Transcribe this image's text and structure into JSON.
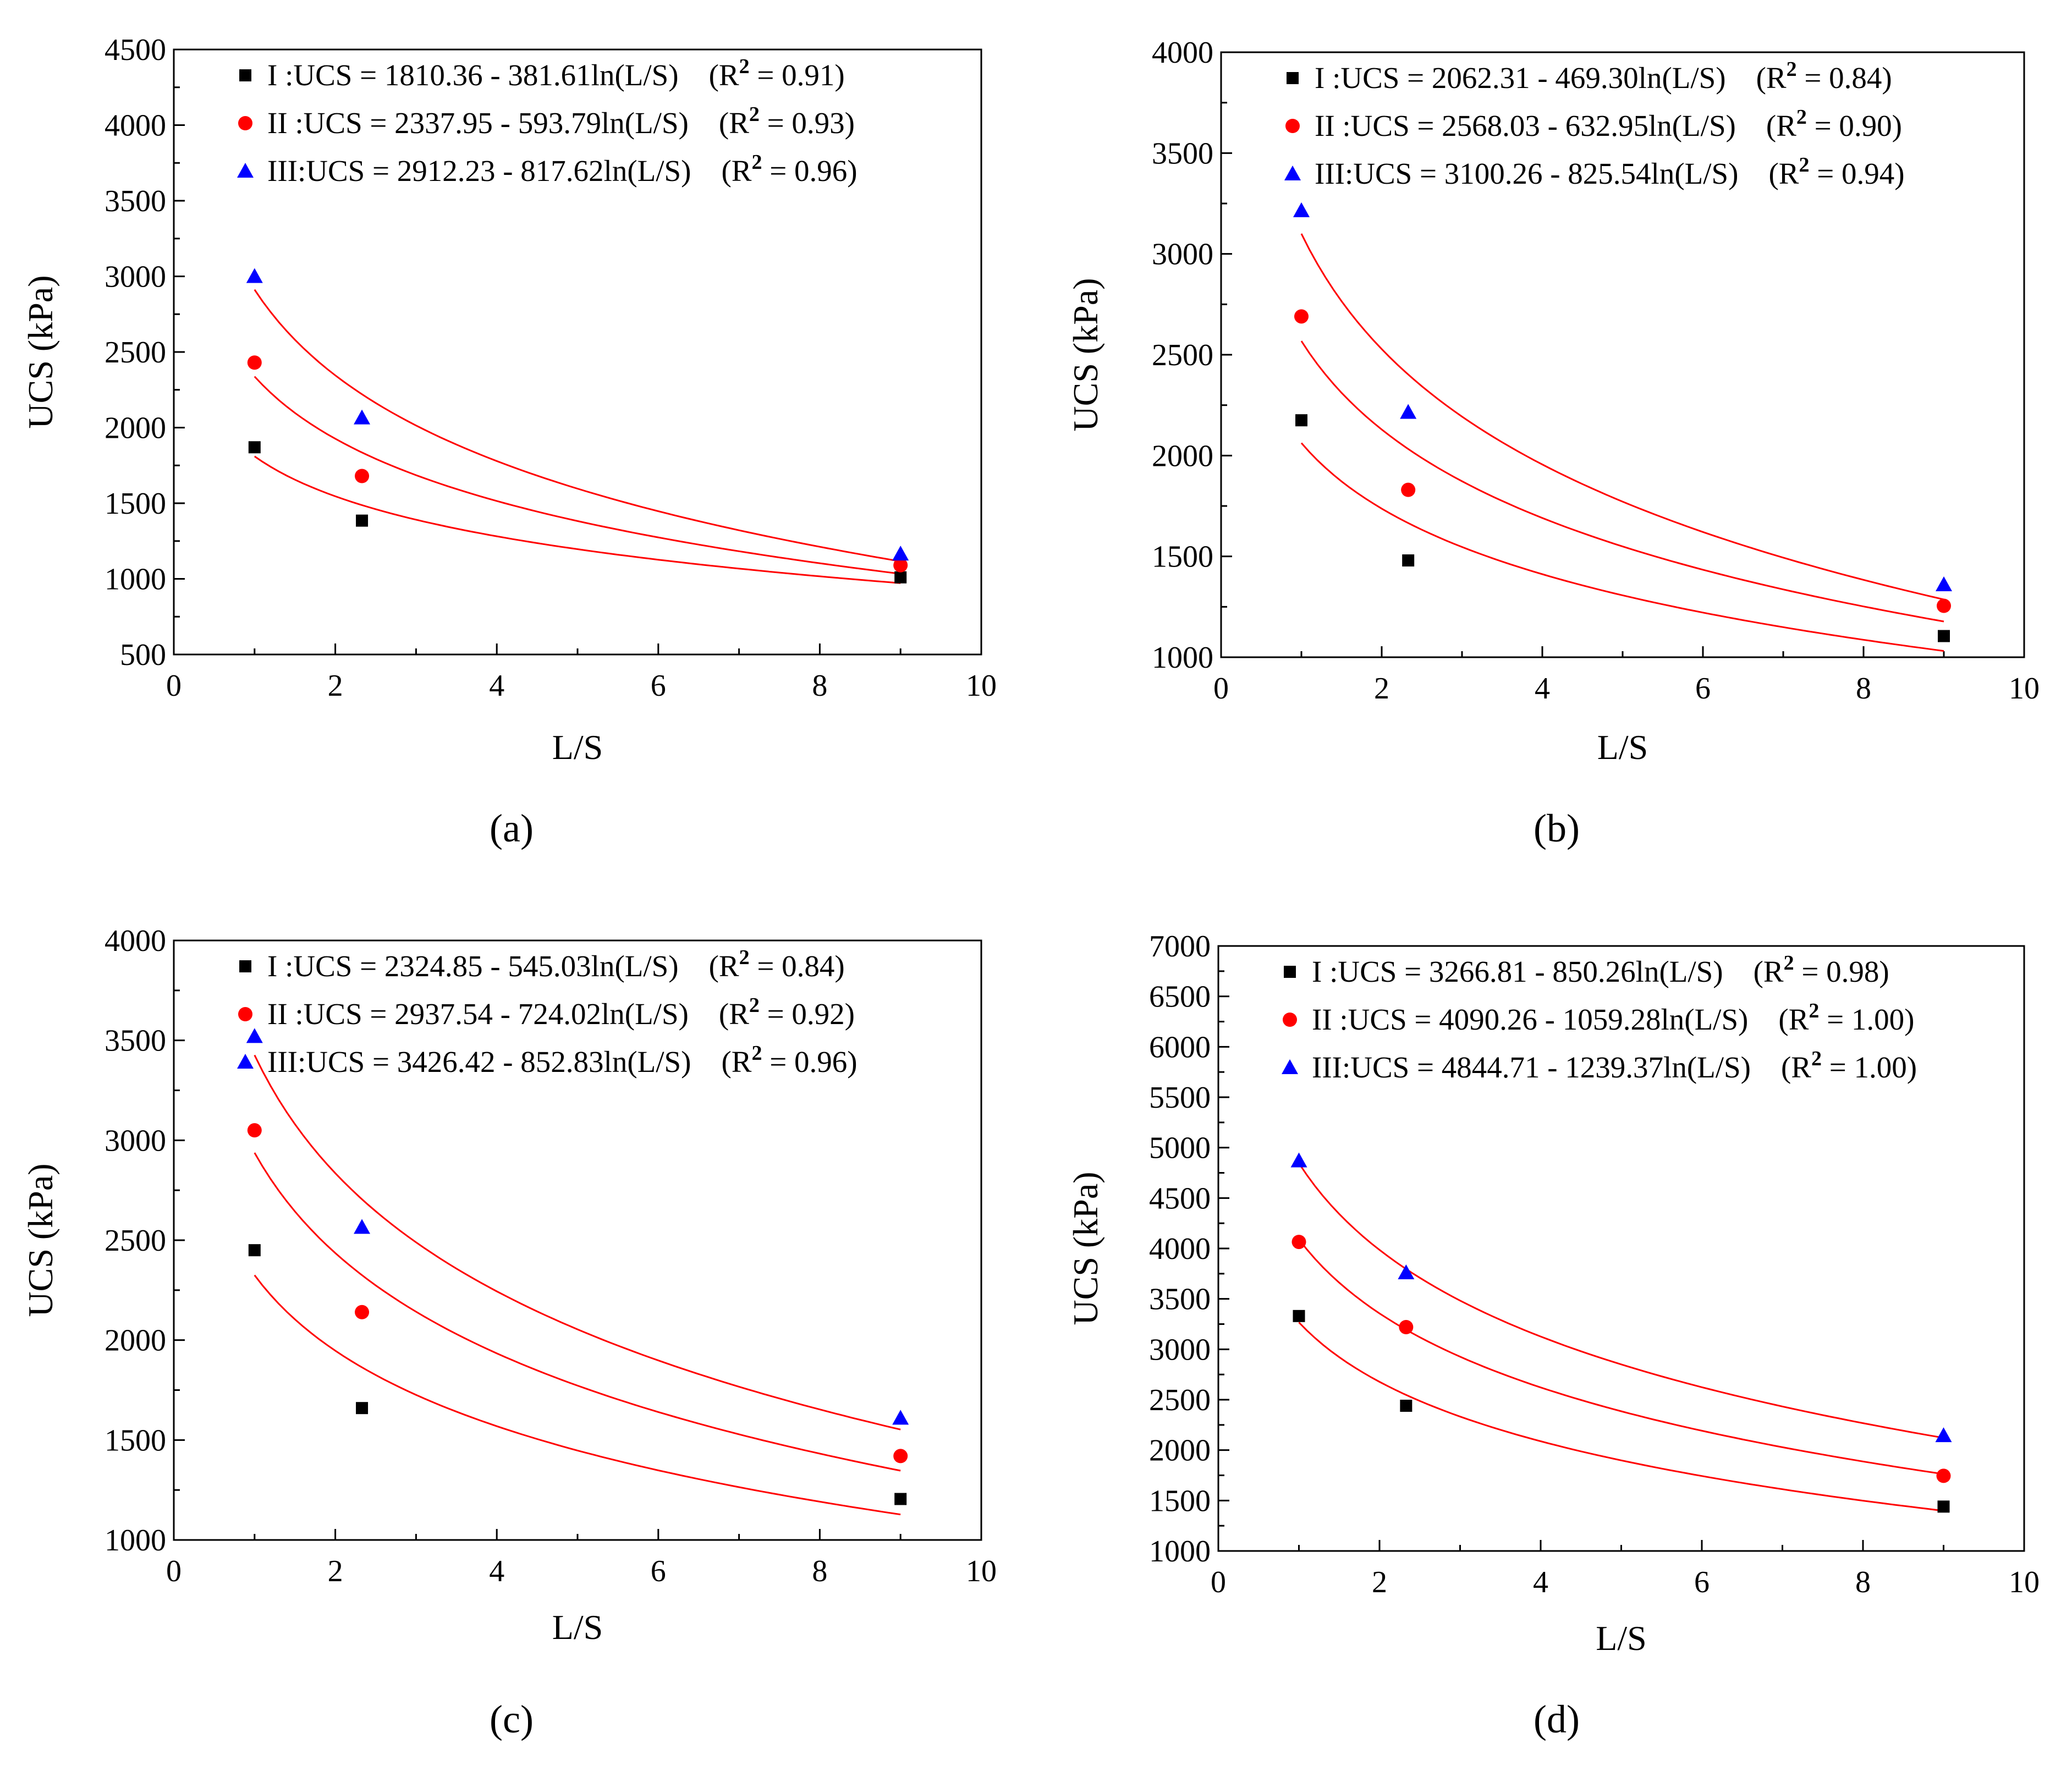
{
  "chart_data": [
    {
      "type": "scatter",
      "panel_label": "(a)",
      "xlabel": "L/S",
      "ylabel": "UCS (kPa)",
      "xlim": [
        0,
        10
      ],
      "ylim": [
        500,
        4500
      ],
      "xticks": [
        0,
        2,
        4,
        6,
        8,
        10
      ],
      "yticks": [
        500,
        1000,
        1500,
        2000,
        2500,
        3000,
        3500,
        4000,
        4500
      ],
      "grid": false,
      "legend_position": "top-right",
      "fit": "logarithmic",
      "fit_range": [
        1,
        9
      ],
      "series": [
        {
          "name": "I",
          "marker": "square",
          "color": "#000000",
          "x": [
            1,
            2.33,
            9
          ],
          "y": [
            1870,
            1385,
            1010
          ],
          "a": 1810.36,
          "b": 381.61,
          "legend_lead": "I  :UCS = 1810.36 - 381.61ln(L/S)",
          "r2_value": "0.91",
          "r2_open": "(R",
          "r2_sup": "2",
          "r2_eq": " = ",
          "r2_close": ")"
        },
        {
          "name": "II",
          "marker": "circle",
          "color": "#ff0000",
          "x": [
            1,
            2.33,
            9
          ],
          "y": [
            2430,
            1680,
            1090
          ],
          "a": 2337.95,
          "b": 593.79,
          "legend_lead": "II :UCS = 2337.95 - 593.79ln(L/S)",
          "r2_value": "0.93",
          "r2_open": "(R",
          "r2_sup": "2",
          "r2_eq": " = ",
          "r2_close": ")"
        },
        {
          "name": "III",
          "marker": "triangle",
          "color": "#0000ff",
          "x": [
            1,
            2.33,
            9
          ],
          "y": [
            3000,
            2065,
            1165
          ],
          "a": 2912.23,
          "b": 817.62,
          "legend_lead": "III:UCS = 2912.23 - 817.62ln(L/S)",
          "r2_value": "0.96",
          "r2_open": "(R",
          "r2_sup": "2",
          "r2_eq": " = ",
          "r2_close": ")"
        }
      ]
    },
    {
      "type": "scatter",
      "panel_label": "(b)",
      "xlabel": "L/S",
      "ylabel": "UCS (kPa)",
      "xlim": [
        0,
        10
      ],
      "ylim": [
        1000,
        4000
      ],
      "xticks": [
        0,
        2,
        4,
        6,
        8,
        10
      ],
      "yticks": [
        1000,
        1500,
        2000,
        2500,
        3000,
        3500,
        4000
      ],
      "grid": false,
      "legend_position": "top-right",
      "fit": "logarithmic",
      "fit_range": [
        1,
        9
      ],
      "series": [
        {
          "name": "I",
          "marker": "square",
          "color": "#000000",
          "x": [
            1,
            2.33,
            9
          ],
          "y": [
            2175,
            1480,
            1105
          ],
          "a": 2062.31,
          "b": 469.3,
          "legend_lead": "I  :UCS = 2062.31 - 469.30ln(L/S)",
          "r2_value": "0.84",
          "r2_open": "(R",
          "r2_sup": "2",
          "r2_eq": " = ",
          "r2_close": ")"
        },
        {
          "name": "II",
          "marker": "circle",
          "color": "#ff0000",
          "x": [
            1,
            2.33,
            9
          ],
          "y": [
            2690,
            1830,
            1255
          ],
          "a": 2568.03,
          "b": 632.95,
          "legend_lead": "II :UCS = 2568.03 - 632.95ln(L/S)",
          "r2_value": "0.90",
          "r2_open": "(R",
          "r2_sup": "2",
          "r2_eq": " = ",
          "r2_close": ")"
        },
        {
          "name": "III",
          "marker": "triangle",
          "color": "#0000ff",
          "x": [
            1,
            2.33,
            9
          ],
          "y": [
            3215,
            2215,
            1360
          ],
          "a": 3100.26,
          "b": 825.54,
          "legend_lead": "III:UCS = 3100.26 - 825.54ln(L/S)",
          "r2_value": "0.94",
          "r2_open": "(R",
          "r2_sup": "2",
          "r2_eq": " = ",
          "r2_close": ")"
        }
      ]
    },
    {
      "type": "scatter",
      "panel_label": "(c)",
      "xlabel": "L/S",
      "ylabel": "UCS (kPa)",
      "xlim": [
        0,
        10
      ],
      "ylim": [
        1000,
        4000
      ],
      "xticks": [
        0,
        2,
        4,
        6,
        8,
        10
      ],
      "yticks": [
        1000,
        1500,
        2000,
        2500,
        3000,
        3500,
        4000
      ],
      "grid": false,
      "legend_position": "top-right",
      "fit": "logarithmic",
      "fit_range": [
        1,
        9
      ],
      "series": [
        {
          "name": "I",
          "marker": "square",
          "color": "#000000",
          "x": [
            1,
            2.33,
            9
          ],
          "y": [
            2450,
            1660,
            1205
          ],
          "a": 2324.85,
          "b": 545.03,
          "legend_lead": "I  :UCS = 2324.85 - 545.03ln(L/S)",
          "r2_value": "0.84",
          "r2_open": "(R",
          "r2_sup": "2",
          "r2_eq": " = ",
          "r2_close": ")"
        },
        {
          "name": "II",
          "marker": "circle",
          "color": "#ff0000",
          "x": [
            1,
            2.33,
            9
          ],
          "y": [
            3050,
            2140,
            1420
          ],
          "a": 2937.54,
          "b": 724.02,
          "legend_lead": "II :UCS = 2937.54 - 724.02ln(L/S)",
          "r2_value": "0.92",
          "r2_open": "(R",
          "r2_sup": "2",
          "r2_eq": " = ",
          "r2_close": ")"
        },
        {
          "name": "III",
          "marker": "triangle",
          "color": "#0000ff",
          "x": [
            1,
            2.33,
            9
          ],
          "y": [
            3520,
            2565,
            1610
          ],
          "a": 3426.42,
          "b": 852.83,
          "legend_lead": "III:UCS = 3426.42 - 852.83ln(L/S)",
          "r2_value": "0.96",
          "r2_open": "(R",
          "r2_sup": "2",
          "r2_eq": " = ",
          "r2_close": ")"
        }
      ]
    },
    {
      "type": "scatter",
      "panel_label": "(d)",
      "xlabel": "L/S",
      "ylabel": "UCS (kPa)",
      "xlim": [
        0,
        10
      ],
      "ylim": [
        1000,
        7000
      ],
      "xticks": [
        0,
        2,
        4,
        6,
        8,
        10
      ],
      "yticks": [
        1000,
        1500,
        2000,
        2500,
        3000,
        3500,
        4000,
        4500,
        5000,
        5500,
        6000,
        6500,
        7000
      ],
      "grid": false,
      "legend_position": "top-right",
      "fit": "logarithmic",
      "fit_range": [
        1,
        9
      ],
      "series": [
        {
          "name": "I",
          "marker": "square",
          "color": "#000000",
          "x": [
            1,
            2.33,
            9
          ],
          "y": [
            3330,
            2440,
            1440
          ],
          "a": 3266.81,
          "b": 850.26,
          "legend_lead": "I  :UCS = 3266.81 - 850.26ln(L/S)",
          "r2_value": "0.98",
          "r2_open": "(R",
          "r2_sup": "2",
          "r2_eq": " = ",
          "r2_close": ")"
        },
        {
          "name": "II",
          "marker": "circle",
          "color": "#ff0000",
          "x": [
            1,
            2.33,
            9
          ],
          "y": [
            4065,
            3220,
            1745
          ],
          "a": 4090.26,
          "b": 1059.28,
          "legend_lead": "II :UCS = 4090.26 - 1059.28ln(L/S)",
          "r2_value": "1.00",
          "r2_open": "(R",
          "r2_sup": "2",
          "r2_eq": " = ",
          "r2_close": ")"
        },
        {
          "name": "III",
          "marker": "triangle",
          "color": "#0000ff",
          "x": [
            1,
            2.33,
            9
          ],
          "y": [
            4870,
            3760,
            2145
          ],
          "a": 4844.71,
          "b": 1239.37,
          "legend_lead": "III:UCS = 4844.71 - 1239.37ln(L/S)",
          "r2_value": "1.00",
          "r2_open": "(R",
          "r2_sup": "2",
          "r2_eq": " = ",
          "r2_close": ")"
        }
      ]
    }
  ],
  "colors": {
    "fit_line": "#ff0000",
    "axis": "#000000"
  }
}
